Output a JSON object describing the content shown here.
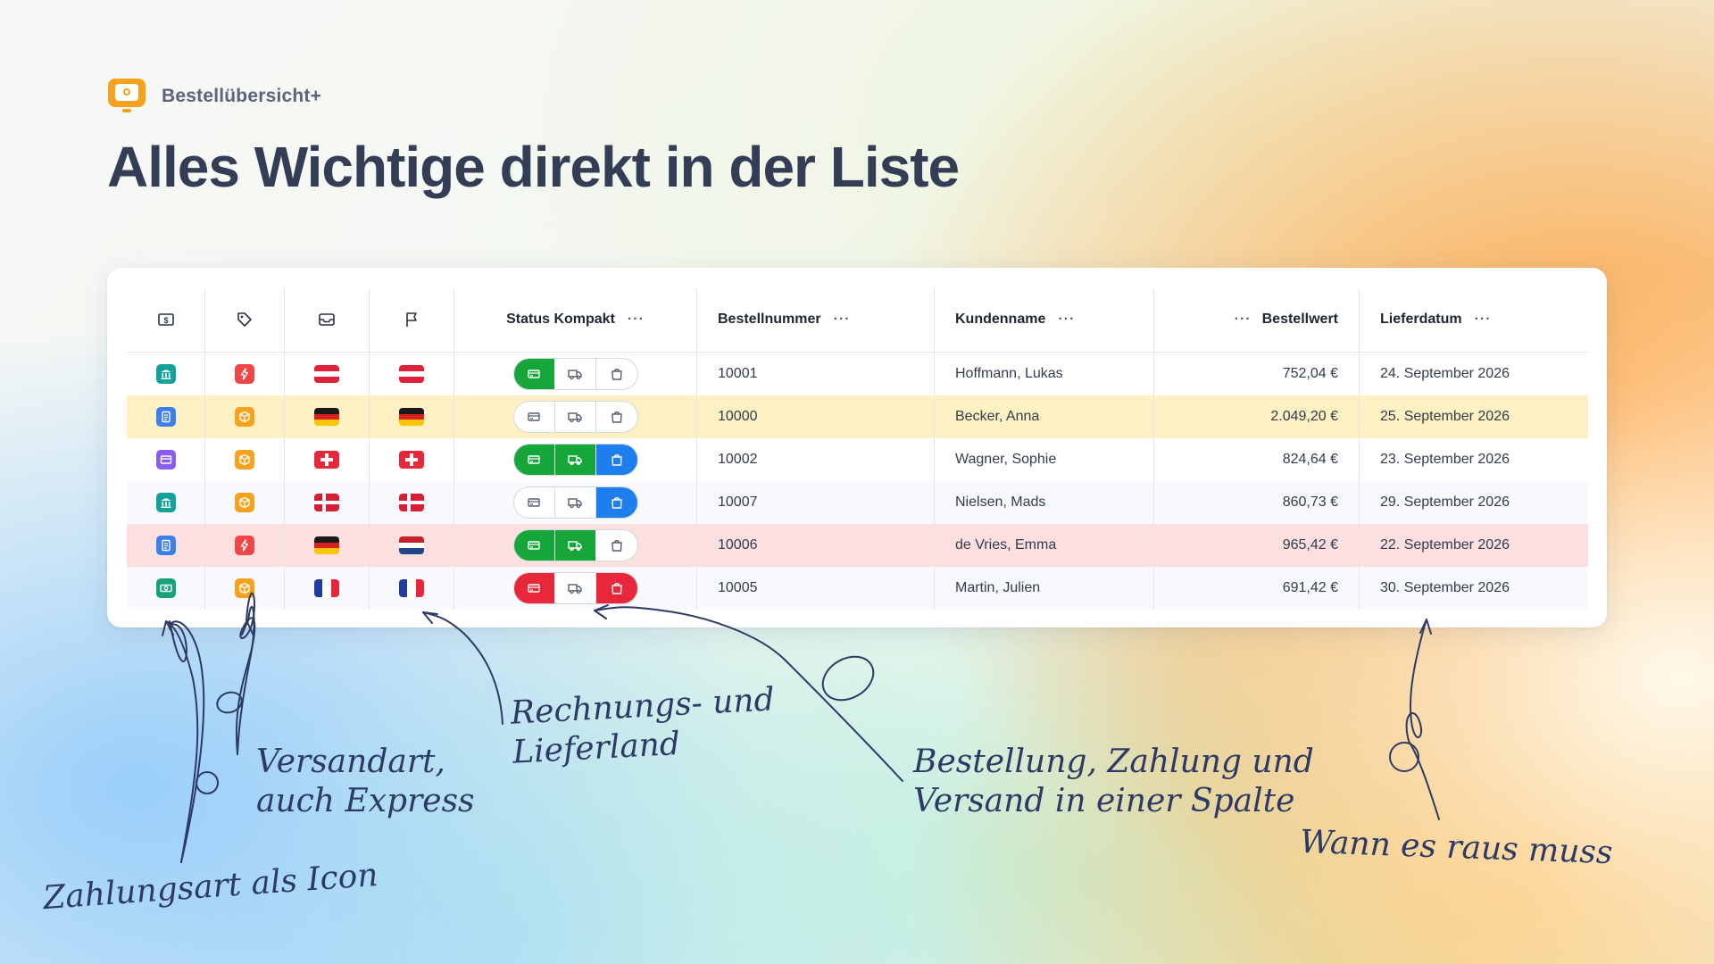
{
  "brand": {
    "name": "Bestellübersicht+",
    "logo_icon": "monitor-icon"
  },
  "headline": "Alles Wichtige direkt in der Liste",
  "table": {
    "columns": {
      "payment_icon": "dollar-icon",
      "shipping_icon": "tag-icon",
      "billing_icon": "inbox-icon",
      "delivery_icon": "flag-icon",
      "status": "Status Kompakt",
      "order_number": "Bestellnummer",
      "customer": "Kundenname",
      "value": "Bestellwert",
      "delivery_date": "Lieferdatum",
      "more": "···"
    },
    "rows": [
      {
        "payment": "bank",
        "shipping": "express",
        "billing_country": "AT",
        "delivery_country": "AT",
        "status": [
          "paid",
          "none",
          "none"
        ],
        "order_number": "10001",
        "customer": "Hoffmann, Lukas",
        "value": "752,04 €",
        "delivery_date": "24. September 2026",
        "highlight": "none"
      },
      {
        "payment": "invoice",
        "shipping": "package",
        "billing_country": "DE",
        "delivery_country": "DE",
        "status": [
          "none",
          "none",
          "none"
        ],
        "order_number": "10000",
        "customer": "Becker, Anna",
        "value": "2.049,20 €",
        "delivery_date": "25. September 2026",
        "highlight": "yellow"
      },
      {
        "payment": "card",
        "shipping": "package",
        "billing_country": "CH",
        "delivery_country": "CH",
        "status": [
          "paid",
          "shipped",
          "order"
        ],
        "order_number": "10002",
        "customer": "Wagner, Sophie",
        "value": "824,64 €",
        "delivery_date": "23. September 2026",
        "highlight": "none"
      },
      {
        "payment": "bank",
        "shipping": "package",
        "billing_country": "DK",
        "delivery_country": "DK",
        "status": [
          "none",
          "none",
          "order"
        ],
        "order_number": "10007",
        "customer": "Nielsen, Mads",
        "value": "860,73 €",
        "delivery_date": "29. September 2026",
        "highlight": "light"
      },
      {
        "payment": "invoice",
        "shipping": "express",
        "billing_country": "DE",
        "delivery_country": "NL",
        "status": [
          "paid",
          "shipped",
          "none"
        ],
        "order_number": "10006",
        "customer": "de Vries, Emma",
        "value": "965,42 €",
        "delivery_date": "22. September 2026",
        "highlight": "pink"
      },
      {
        "payment": "cash",
        "shipping": "package",
        "billing_country": "FR",
        "delivery_country": "FR",
        "status": [
          "failed",
          "none",
          "cancelled"
        ],
        "order_number": "10005",
        "customer": "Martin, Julien",
        "value": "691,42 €",
        "delivery_date": "30. September 2026",
        "highlight": "light"
      }
    ]
  },
  "annotations": {
    "payment": "Zahlungsart als Icon",
    "shipping_line1": "Versandart,",
    "shipping_line2": "auch Express",
    "country_line1": "Rechnungs- und",
    "country_line2": "Lieferland",
    "status_line1": "Bestellung, Zahlung und",
    "status_line2": "Versand in einer Spalte",
    "date": "Wann es raus muss"
  },
  "colors": {
    "paid": "#16a63a",
    "order": "#1e7ef0",
    "failed": "#e8283a",
    "express": "#ef4747",
    "package": "#f5a31e",
    "row_yellow": "#fdf0c2",
    "row_pink": "#fce0e0"
  }
}
